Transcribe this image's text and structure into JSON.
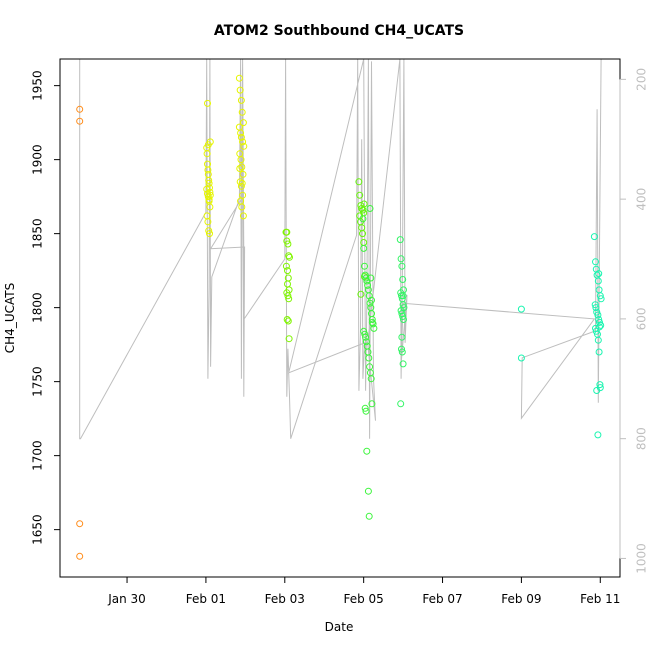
{
  "chart_data": {
    "type": "scatter",
    "title": "ATOM2 Southbound CH4_UCATS",
    "xlabel": "Date",
    "ylabel": "CH4_UCATS",
    "x_ticks": [
      "Jan 30",
      "Feb 01",
      "Feb 03",
      "Feb 05",
      "Feb 07",
      "Feb 09",
      "Feb 11"
    ],
    "x_tick_days": [
      30,
      32,
      34,
      36,
      38,
      40,
      42
    ],
    "xlim": [
      28.3,
      42.5
    ],
    "ylim": [
      1618,
      1968
    ],
    "y_ticks": [
      1650,
      1700,
      1750,
      1800,
      1850,
      1900,
      1950
    ],
    "secondary_y_ticks": [
      200,
      400,
      600,
      800,
      1000
    ],
    "secondary_ylim": [
      1031,
      166
    ],
    "grid": false,
    "legend": "none",
    "colors": {
      "axis": "#000000",
      "secondary_axis": "#bfbfbf",
      "pressure_line": "#bebebe",
      "series_1": "#ff8c1a",
      "series_2": "#e6f500",
      "series_3": "#e6f500",
      "series_4": "#80f500",
      "series_5": "#66f50a",
      "series_6": "#3df53d",
      "series_7": "#33f566",
      "series_8": "#1af5b0"
    },
    "series": [
      {
        "color_key": "series_1",
        "x": [
          28.8,
          28.8,
          28.8,
          28.8
        ],
        "y": [
          1934,
          1926,
          1654,
          1632
        ]
      },
      {
        "color_key": "series_2",
        "x": [
          32.02,
          32.03,
          32.04,
          32.05,
          32.06,
          32.07,
          32.08,
          32.09,
          32.1,
          32.11,
          32.02,
          32.04,
          32.06,
          32.08,
          32.1,
          32.03,
          32.05,
          32.07,
          32.09,
          32.11,
          32.04,
          32.06,
          32.08
        ],
        "y": [
          1908,
          1904,
          1897,
          1893,
          1890,
          1886,
          1884,
          1881,
          1878,
          1876,
          1880,
          1877,
          1875,
          1872,
          1868,
          1862,
          1858,
          1852,
          1850,
          1912,
          1938,
          1910,
          1873
        ]
      },
      {
        "color_key": "series_3",
        "x": [
          32.85,
          32.87,
          32.9,
          32.92,
          32.95,
          32.85,
          32.88,
          32.9,
          32.93,
          32.96,
          32.86,
          32.89,
          32.91,
          32.94,
          32.87,
          32.9,
          32.93,
          32.88,
          32.91,
          32.95,
          32.86,
          32.92
        ],
        "y": [
          1955,
          1947,
          1940,
          1932,
          1925,
          1922,
          1918,
          1915,
          1912,
          1909,
          1904,
          1900,
          1895,
          1890,
          1885,
          1882,
          1876,
          1872,
          1868,
          1862,
          1894,
          1884
        ]
      },
      {
        "color_key": "series_4",
        "x": [
          34.03,
          34.05,
          34.08,
          34.1,
          34.12,
          34.04,
          34.07,
          34.09,
          34.11,
          34.05,
          34.08,
          34.1,
          34.06,
          34.09,
          34.05,
          34.11,
          34.07
        ],
        "y": [
          1851,
          1851,
          1843,
          1835,
          1834,
          1828,
          1825,
          1820,
          1812,
          1810,
          1808,
          1806,
          1792,
          1791,
          1845,
          1779,
          1816
        ]
      },
      {
        "color_key": "series_5",
        "x": [
          35.88,
          35.9,
          35.93,
          35.95,
          35.98,
          36.0,
          35.9,
          35.92,
          35.95,
          35.97,
          36.0,
          36.02,
          35.93,
          36.01
        ],
        "y": [
          1885,
          1876,
          1869,
          1867,
          1866,
          1864,
          1862,
          1858,
          1854,
          1850,
          1844,
          1821,
          1809,
          1870
        ]
      },
      {
        "color_key": "series_6",
        "x": [
          35.98,
          36.0,
          36.02,
          36.04,
          36.06,
          36.08,
          36.1,
          36.12,
          36.14,
          36.16,
          36.18,
          36.2,
          36.22,
          36.24,
          36.26,
          36.0,
          36.03,
          36.05,
          36.07,
          36.09,
          36.11,
          36.13,
          36.15,
          36.17,
          36.19,
          36.21,
          36.04,
          36.06,
          36.08,
          36.12,
          36.14,
          36.16,
          36.18,
          36.2,
          36.22
        ],
        "y": [
          1860,
          1840,
          1828,
          1822,
          1820,
          1818,
          1815,
          1812,
          1808,
          1803,
          1800,
          1796,
          1792,
          1789,
          1786,
          1784,
          1782,
          1780,
          1777,
          1774,
          1770,
          1766,
          1760,
          1756,
          1752,
          1735,
          1732,
          1730,
          1703,
          1676,
          1659,
          1867,
          1820,
          1805,
          1790
        ]
      },
      {
        "color_key": "series_7",
        "x": [
          36.93,
          36.95,
          36.97,
          36.99,
          37.01,
          36.94,
          36.96,
          36.98,
          37.0,
          37.02,
          36.95,
          36.97,
          36.99,
          37.01,
          36.96,
          36.98,
          37.0,
          36.94,
          36.97,
          37.0
        ],
        "y": [
          1846,
          1833,
          1828,
          1819,
          1812,
          1810,
          1808,
          1806,
          1802,
          1800,
          1798,
          1796,
          1794,
          1792,
          1772,
          1770,
          1762,
          1735,
          1780,
          1808
        ]
      },
      {
        "color_key": "series_8",
        "x": [
          40.0,
          40.0,
          41.85,
          41.88,
          41.9,
          41.92,
          41.95,
          41.97,
          42.0,
          42.02,
          41.87,
          41.89,
          41.91,
          41.94,
          41.96,
          41.98,
          42.01,
          41.88,
          41.9,
          41.93,
          41.95,
          41.97,
          41.99,
          42.0,
          41.91,
          41.94,
          41.96,
          41.98
        ],
        "y": [
          1799,
          1766,
          1848,
          1831,
          1826,
          1822,
          1818,
          1812,
          1808,
          1806,
          1802,
          1800,
          1797,
          1795,
          1792,
          1790,
          1788,
          1786,
          1784,
          1782,
          1778,
          1770,
          1748,
          1746,
          1744,
          1714,
          1823,
          1787
        ]
      }
    ],
    "pressure_line": {
      "axis": "secondary",
      "x": [
        28.8,
        28.8,
        28.82,
        32.0,
        32.02,
        32.05,
        32.08,
        32.1,
        32.12,
        32.15,
        32.85,
        32.88,
        32.9,
        32.93,
        32.96,
        32.98,
        32.1,
        32.12,
        32.9,
        32.93,
        32.97,
        34.0,
        34.02,
        34.05,
        34.08,
        34.12,
        34.15,
        35.82,
        35.85,
        35.88,
        35.92,
        35.95,
        35.98,
        36.02,
        34.1,
        36.0,
        36.05,
        36.08,
        36.12,
        36.15,
        36.2,
        36.25,
        36.3,
        36.1,
        36.92,
        36.95,
        36.98,
        37.02,
        37.05,
        37.1,
        36.95,
        37.0,
        41.85,
        40.0,
        40.02,
        41.88,
        41.92,
        41.95,
        41.98,
        42.02
      ],
      "y": [
        166,
        800,
        800,
        422,
        166,
        700,
        550,
        166,
        680,
        530,
        400,
        166,
        700,
        166,
        730,
        480,
        483,
        483,
        400,
        166,
        600,
        500,
        166,
        730,
        650,
        730,
        800,
        460,
        166,
        720,
        620,
        300,
        700,
        640,
        690,
        166,
        720,
        580,
        166,
        800,
        170,
        700,
        770,
        640,
        166,
        700,
        550,
        166,
        640,
        560,
        675,
        574,
        600,
        766,
        665,
        620,
        250,
        740,
        480,
        166
      ]
    }
  }
}
